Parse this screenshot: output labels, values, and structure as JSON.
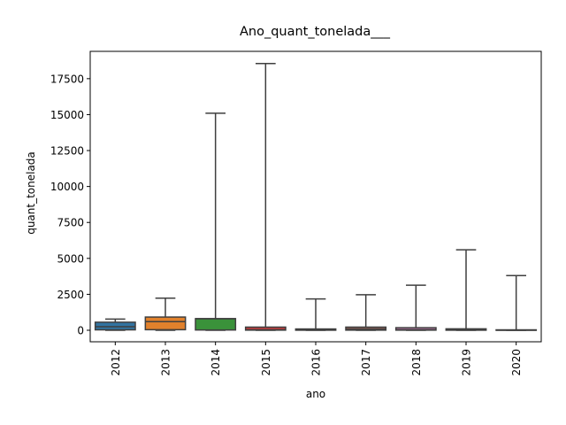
{
  "chart_data": {
    "type": "boxplot",
    "title": "Ano_quant_tonelada___",
    "xlabel": "ano",
    "ylabel": "quant_tonelada",
    "ylim": [
      -800,
      19400
    ],
    "yticks": [
      0,
      2500,
      5000,
      7500,
      10000,
      12500,
      15000,
      17500
    ],
    "ytick_labels": [
      "0",
      "2500",
      "5000",
      "7500",
      "10000",
      "12500",
      "15000",
      "17500"
    ],
    "grid": false,
    "categories": [
      "2012",
      "2013",
      "2014",
      "2015",
      "2016",
      "2017",
      "2018",
      "2019",
      "2020"
    ],
    "boxes": [
      {
        "category": "2012",
        "whisker_low": 0,
        "q1": 30,
        "median": 250,
        "q3": 560,
        "whisker_high": 780,
        "color": "#3274a1"
      },
      {
        "category": "2013",
        "whisker_low": 0,
        "q1": 40,
        "median": 600,
        "q3": 920,
        "whisker_high": 2230,
        "color": "#e1812c"
      },
      {
        "category": "2014",
        "whisker_low": 0,
        "q1": 20,
        "median": 800,
        "q3": 810,
        "whisker_high": 15100,
        "color": "#3a923a"
      },
      {
        "category": "2015",
        "whisker_low": 0,
        "q1": 10,
        "median": 30,
        "q3": 220,
        "whisker_high": 18550,
        "color": "#c03d3e"
      },
      {
        "category": "2016",
        "whisker_low": 0,
        "q1": 5,
        "median": 20,
        "q3": 90,
        "whisker_high": 2180,
        "color": "#9372b2"
      },
      {
        "category": "2017",
        "whisker_low": 0,
        "q1": 10,
        "median": 60,
        "q3": 220,
        "whisker_high": 2470,
        "color": "#845b53"
      },
      {
        "category": "2018",
        "whisker_low": 0,
        "q1": 10,
        "median": 50,
        "q3": 180,
        "whisker_high": 3130,
        "color": "#d684bd"
      },
      {
        "category": "2019",
        "whisker_low": 0,
        "q1": 5,
        "median": 40,
        "q3": 100,
        "whisker_high": 5600,
        "color": "#7f7f7f"
      },
      {
        "category": "2020",
        "whisker_low": 0,
        "q1": 0,
        "median": 10,
        "q3": 30,
        "whisker_high": 3800,
        "color": "#a9aa35"
      }
    ],
    "line_color": "#3f3f3f"
  }
}
